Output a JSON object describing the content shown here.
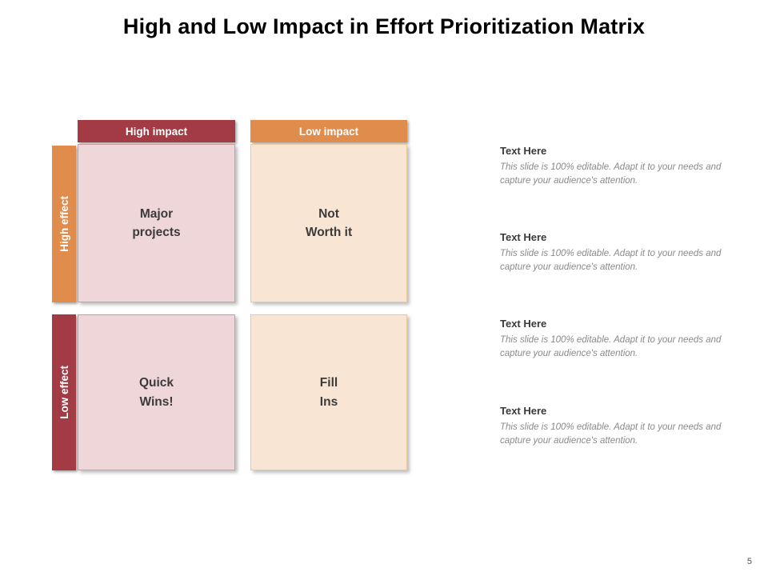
{
  "page": {
    "title": "High and Low Impact in Effort Prioritization Matrix",
    "page_number": "5"
  },
  "colors": {
    "maroon": "#A23B43",
    "orange": "#E08C4C",
    "pink_cell": "#EFD6D9",
    "pink_border": "#CE9BA1",
    "peach_cell": "#F8E5D3",
    "peach_border": "#E9C7A0"
  },
  "matrix": {
    "column_headers": [
      {
        "label": "High impact",
        "color": "#A23B43"
      },
      {
        "label": "Low impact",
        "color": "#E08C4C"
      }
    ],
    "row_labels": [
      {
        "label": "High effect",
        "color": "#E08C4C"
      },
      {
        "label": "Low effect",
        "color": "#A23B43"
      }
    ],
    "quadrants": [
      {
        "name": "major-projects",
        "line1": "Major",
        "line2": "projects"
      },
      {
        "name": "not-worth-it",
        "line1": "Not",
        "line2": "Worth it"
      },
      {
        "name": "quick-wins",
        "line1": "Quick",
        "line2": "Wins!"
      },
      {
        "name": "fill-ins",
        "line1": "Fill",
        "line2": "Ins"
      }
    ]
  },
  "notes": [
    {
      "heading": "Text Here",
      "body": "This slide is 100% editable. Adapt it to your needs and capture your audience's attention."
    },
    {
      "heading": "Text Here",
      "body": "This slide is 100% editable. Adapt it to your needs and capture your audience's attention."
    },
    {
      "heading": "Text Here",
      "body": "This slide is 100% editable. Adapt it to your needs and capture your audience's attention."
    },
    {
      "heading": "Text Here",
      "body": "This slide is 100% editable. Adapt it to your needs and capture your audience's attention."
    }
  ]
}
